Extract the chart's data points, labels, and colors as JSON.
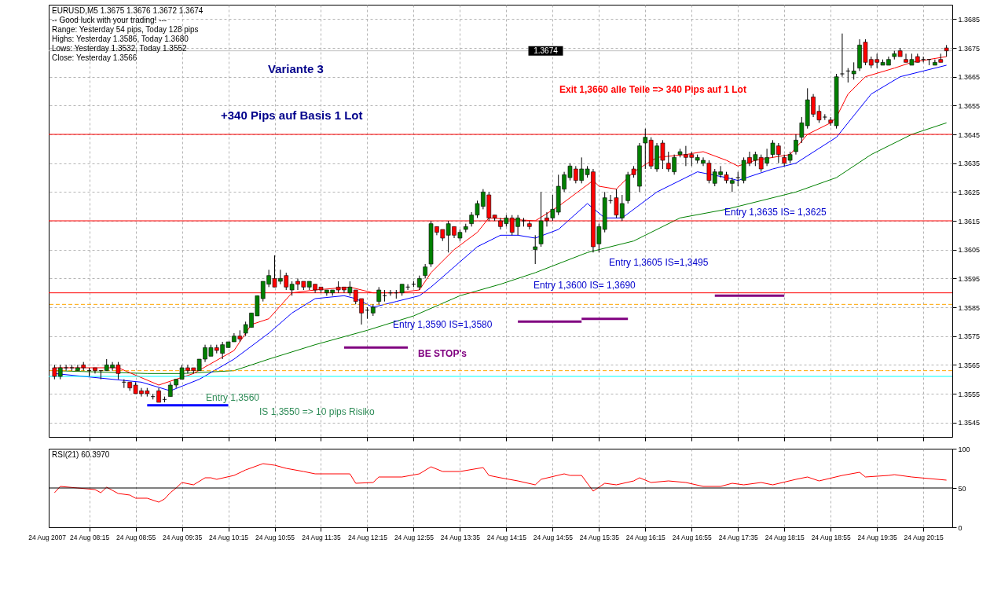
{
  "chart_data": [
    {
      "type": "candlestick",
      "title": "EURUSD,M5  1.3675 1.3676 1.3672 1.3674",
      "annotations": [
        "-- Good luck with your trading! ---",
        "Range: Yesterday 54 pips, Today 128 pips",
        "Highs: Yesterday 1.3586, Today 1.3680",
        "Lows:  Yesterday 1.3532, Today 1.3552",
        "Close: Yesterday 1.3566",
        "Variante 3",
        "+340 Pips auf Basis 1 Lot",
        "Exit 1,3660 alle Teile => 340 Pips auf 1 Lot",
        "BE STOP's",
        "Entry 1,3560",
        "IS 1,3550 => 10 pips Risiko",
        "Entry 1,3590 IS=1,3580",
        "Entry 1,3600 IS= 1,3690",
        "Entry 1,3605 IS=1,3495",
        "Entry 1,3635 IS= 1,3625"
      ],
      "x": [
        "2007-08-24T07:45",
        "2007-08-24T07:50",
        "2007-08-24T07:55",
        "2007-08-24T08:00",
        "2007-08-24T08:05",
        "2007-08-24T08:10",
        "2007-08-24T08:15",
        "2007-08-24T08:20",
        "2007-08-24T08:25",
        "2007-08-24T08:30",
        "2007-08-24T08:35",
        "2007-08-24T08:40",
        "2007-08-24T08:45",
        "2007-08-24T08:50",
        "2007-08-24T08:55",
        "2007-08-24T09:00",
        "2007-08-24T09:05",
        "2007-08-24T09:10",
        "2007-08-24T09:15",
        "2007-08-24T09:20",
        "2007-08-24T09:25",
        "2007-08-24T09:30",
        "2007-08-24T09:35",
        "2007-08-24T09:40",
        "2007-08-24T09:45",
        "2007-08-24T09:50",
        "2007-08-24T09:55",
        "2007-08-24T10:00",
        "2007-08-24T10:05",
        "2007-08-24T10:10",
        "2007-08-24T10:15",
        "2007-08-24T10:20",
        "2007-08-24T10:25",
        "2007-08-24T10:30",
        "2007-08-24T10:35",
        "2007-08-24T10:40",
        "2007-08-24T10:45",
        "2007-08-24T10:50",
        "2007-08-24T10:55",
        "2007-08-24T11:00",
        "2007-08-24T11:05",
        "2007-08-24T11:10",
        "2007-08-24T11:15",
        "2007-08-24T11:20",
        "2007-08-24T11:25",
        "2007-08-24T11:30",
        "2007-08-24T11:35",
        "2007-08-24T11:40",
        "2007-08-24T11:45",
        "2007-08-24T11:50",
        "2007-08-24T11:55",
        "2007-08-24T12:00",
        "2007-08-24T12:05",
        "2007-08-24T12:10",
        "2007-08-24T12:15",
        "2007-08-24T12:20",
        "2007-08-24T12:25",
        "2007-08-24T12:30",
        "2007-08-24T12:35",
        "2007-08-24T12:40",
        "2007-08-24T12:45",
        "2007-08-24T12:50",
        "2007-08-24T12:55",
        "2007-08-24T13:00",
        "2007-08-24T13:05",
        "2007-08-24T13:10",
        "2007-08-24T13:15",
        "2007-08-24T13:20",
        "2007-08-24T13:25",
        "2007-08-24T13:30",
        "2007-08-24T13:35",
        "2007-08-24T13:40",
        "2007-08-24T13:45",
        "2007-08-24T13:50",
        "2007-08-24T13:55",
        "2007-08-24T14:00",
        "2007-08-24T14:05",
        "2007-08-24T14:10",
        "2007-08-24T14:15",
        "2007-08-24T14:20",
        "2007-08-24T14:25",
        "2007-08-24T14:30",
        "2007-08-24T14:35",
        "2007-08-24T14:40",
        "2007-08-24T14:45",
        "2007-08-24T14:50",
        "2007-08-24T14:55",
        "2007-08-24T15:00",
        "2007-08-24T15:05",
        "2007-08-24T15:10",
        "2007-08-24T15:15",
        "2007-08-24T15:20",
        "2007-08-24T15:25",
        "2007-08-24T15:30",
        "2007-08-24T15:35",
        "2007-08-24T15:40",
        "2007-08-24T15:45",
        "2007-08-24T15:50",
        "2007-08-24T15:55",
        "2007-08-24T16:00",
        "2007-08-24T16:05",
        "2007-08-24T16:10",
        "2007-08-24T16:15",
        "2007-08-24T16:20",
        "2007-08-24T16:25",
        "2007-08-24T16:30",
        "2007-08-24T16:35",
        "2007-08-24T16:40",
        "2007-08-24T16:45",
        "2007-08-24T16:50",
        "2007-08-24T16:55",
        "2007-08-24T17:00",
        "2007-08-24T17:05",
        "2007-08-24T17:10",
        "2007-08-24T17:15",
        "2007-08-24T17:20",
        "2007-08-24T17:25",
        "2007-08-24T17:30",
        "2007-08-24T17:35",
        "2007-08-24T17:40",
        "2007-08-24T17:45",
        "2007-08-24T17:50",
        "2007-08-24T17:55",
        "2007-08-24T18:00",
        "2007-08-24T18:05",
        "2007-08-24T18:10",
        "2007-08-24T18:15",
        "2007-08-24T18:20",
        "2007-08-24T18:25",
        "2007-08-24T18:30",
        "2007-08-24T18:35",
        "2007-08-24T18:40",
        "2007-08-24T18:45",
        "2007-08-24T18:50",
        "2007-08-24T18:55",
        "2007-08-24T19:00",
        "2007-08-24T19:05",
        "2007-08-24T19:10",
        "2007-08-24T19:15",
        "2007-08-24T19:20",
        "2007-08-24T19:25",
        "2007-08-24T19:30",
        "2007-08-24T19:35",
        "2007-08-24T19:40",
        "2007-08-24T19:45",
        "2007-08-24T19:50",
        "2007-08-24T19:55",
        "2007-08-24T20:00",
        "2007-08-24T20:05",
        "2007-08-24T20:10",
        "2007-08-24T20:15",
        "2007-08-24T20:20",
        "2007-08-24T20:25",
        "2007-08-24T20:30",
        "2007-08-24T20:35"
      ],
      "ohlc": [
        [
          1.3564,
          1.3565,
          1.356,
          1.3561
        ],
        [
          1.3561,
          1.3565,
          1.356,
          1.3564
        ],
        [
          1.3564,
          1.3565,
          1.3563,
          1.3564
        ],
        [
          1.3564,
          1.3565,
          1.3563,
          1.3564
        ],
        [
          1.3563,
          1.3565,
          1.3563,
          1.3564
        ],
        [
          1.3565,
          1.3566,
          1.3563,
          1.3564
        ],
        [
          1.3563,
          1.3564,
          1.3561,
          1.3563
        ],
        [
          1.3564,
          1.3564,
          1.3562,
          1.3563
        ],
        [
          1.3563,
          1.3563,
          1.356,
          1.3563
        ],
        [
          1.3563,
          1.3567,
          1.3563,
          1.3565
        ],
        [
          1.3564,
          1.3566,
          1.3563,
          1.3565
        ],
        [
          1.3565,
          1.3566,
          1.356,
          1.3562
        ],
        [
          1.3559,
          1.356,
          1.3557,
          1.3559
        ],
        [
          1.3559,
          1.3559,
          1.3556,
          1.3557
        ],
        [
          1.3558,
          1.3559,
          1.3555,
          1.3555
        ],
        [
          1.3556,
          1.3557,
          1.3554,
          1.3555
        ],
        [
          1.3556,
          1.3557,
          1.3554,
          1.3555
        ],
        [
          1.3554,
          1.3555,
          1.3553,
          1.3554
        ],
        [
          1.3556,
          1.3557,
          1.3552,
          1.3552
        ],
        [
          1.3553,
          1.3554,
          1.3552,
          1.3553
        ],
        [
          1.3554,
          1.3559,
          1.3554,
          1.3558
        ],
        [
          1.3558,
          1.356,
          1.3557,
          1.356
        ],
        [
          1.356,
          1.3565,
          1.356,
          1.3564
        ],
        [
          1.3564,
          1.3565,
          1.3562,
          1.3563
        ],
        [
          1.3564,
          1.3564,
          1.3562,
          1.3563
        ],
        [
          1.3563,
          1.3567,
          1.3563,
          1.3567
        ],
        [
          1.3567,
          1.3572,
          1.3566,
          1.3571
        ],
        [
          1.3568,
          1.3572,
          1.3568,
          1.3571
        ],
        [
          1.3571,
          1.3572,
          1.3569,
          1.357
        ],
        [
          1.3569,
          1.3573,
          1.3567,
          1.3572
        ],
        [
          1.3571,
          1.3573,
          1.3571,
          1.3573
        ],
        [
          1.3573,
          1.3576,
          1.3573,
          1.3575
        ],
        [
          1.3575,
          1.3577,
          1.3573,
          1.3574
        ],
        [
          1.3576,
          1.358,
          1.3575,
          1.3579
        ],
        [
          1.3578,
          1.3583,
          1.3578,
          1.3583
        ],
        [
          1.3582,
          1.3589,
          1.3582,
          1.3589
        ],
        [
          1.3588,
          1.3594,
          1.3587,
          1.3594
        ],
        [
          1.3593,
          1.3598,
          1.3592,
          1.3596
        ],
        [
          1.3595,
          1.3603,
          1.3592,
          1.3592
        ],
        [
          1.3594,
          1.3598,
          1.3593,
          1.3595
        ],
        [
          1.3596,
          1.3597,
          1.3591,
          1.3592
        ],
        [
          1.3591,
          1.3594,
          1.3589,
          1.3593
        ],
        [
          1.3594,
          1.3595,
          1.3591,
          1.3593
        ],
        [
          1.3594,
          1.3594,
          1.3591,
          1.3592
        ],
        [
          1.3592,
          1.3594,
          1.3591,
          1.3594
        ],
        [
          1.3593,
          1.3593,
          1.359,
          1.3591
        ],
        [
          1.3592,
          1.3592,
          1.359,
          1.3591
        ],
        [
          1.359,
          1.3591,
          1.3589,
          1.3591
        ],
        [
          1.359,
          1.3591,
          1.3589,
          1.3591
        ],
        [
          1.3592,
          1.3594,
          1.359,
          1.3591
        ],
        [
          1.3592,
          1.3592,
          1.359,
          1.3591
        ],
        [
          1.359,
          1.3594,
          1.3589,
          1.3592
        ],
        [
          1.3591,
          1.3591,
          1.3586,
          1.3587
        ],
        [
          1.3588,
          1.3588,
          1.3579,
          1.3583
        ],
        [
          1.3584,
          1.3585,
          1.3581,
          1.3584
        ],
        [
          1.3583,
          1.3586,
          1.3582,
          1.3585
        ],
        [
          1.3587,
          1.3592,
          1.3586,
          1.3591
        ],
        [
          1.3589,
          1.3591,
          1.3587,
          1.3589
        ],
        [
          1.359,
          1.3591,
          1.3589,
          1.359
        ],
        [
          1.359,
          1.3591,
          1.3588,
          1.359
        ],
        [
          1.359,
          1.3593,
          1.3589,
          1.3593
        ],
        [
          1.3592,
          1.3593,
          1.3591,
          1.3592
        ],
        [
          1.3593,
          1.3594,
          1.3592,
          1.3593
        ],
        [
          1.3592,
          1.3596,
          1.3591,
          1.3595
        ],
        [
          1.3596,
          1.36,
          1.3595,
          1.3599
        ],
        [
          1.36,
          1.3615,
          1.3599,
          1.3614
        ],
        [
          1.3613,
          1.3613,
          1.361,
          1.3611
        ],
        [
          1.3612,
          1.3612,
          1.3608,
          1.3609
        ],
        [
          1.361,
          1.3615,
          1.3604,
          1.3614
        ],
        [
          1.3613,
          1.3613,
          1.3609,
          1.361
        ],
        [
          1.3609,
          1.3612,
          1.3608,
          1.3611
        ],
        [
          1.3612,
          1.3614,
          1.3611,
          1.3613
        ],
        [
          1.3614,
          1.3618,
          1.3613,
          1.3617
        ],
        [
          1.3617,
          1.3622,
          1.3616,
          1.3621
        ],
        [
          1.362,
          1.3626,
          1.3619,
          1.3625
        ],
        [
          1.3624,
          1.3625,
          1.3615,
          1.3616
        ],
        [
          1.3617,
          1.3617,
          1.3615,
          1.3616
        ],
        [
          1.3615,
          1.3616,
          1.3612,
          1.3613
        ],
        [
          1.3614,
          1.3617,
          1.3613,
          1.3616
        ],
        [
          1.3616,
          1.3617,
          1.361,
          1.3611
        ],
        [
          1.3613,
          1.3617,
          1.361,
          1.3616
        ],
        [
          1.3615,
          1.3616,
          1.3613,
          1.3615
        ],
        [
          1.3614,
          1.3615,
          1.3612,
          1.3613
        ],
        [
          1.3605,
          1.361,
          1.36,
          1.3606
        ],
        [
          1.3607,
          1.3625,
          1.3606,
          1.3615
        ],
        [
          1.3616,
          1.3618,
          1.3613,
          1.3615
        ],
        [
          1.3616,
          1.3624,
          1.3615,
          1.3619
        ],
        [
          1.3618,
          1.3631,
          1.3617,
          1.3627
        ],
        [
          1.3626,
          1.3632,
          1.3625,
          1.3631
        ],
        [
          1.363,
          1.3635,
          1.3629,
          1.3634
        ],
        [
          1.3633,
          1.3634,
          1.3628,
          1.3629
        ],
        [
          1.3629,
          1.3637,
          1.3628,
          1.3633
        ],
        [
          1.3631,
          1.3634,
          1.363,
          1.3633
        ],
        [
          1.3632,
          1.3633,
          1.3604,
          1.3606
        ],
        [
          1.3607,
          1.3614,
          1.3604,
          1.3613
        ],
        [
          1.3612,
          1.3625,
          1.3611,
          1.3623
        ],
        [
          1.3622,
          1.3624,
          1.3621,
          1.3622
        ],
        [
          1.3623,
          1.3626,
          1.3616,
          1.3617
        ],
        [
          1.3616,
          1.3624,
          1.3615,
          1.3621
        ],
        [
          1.3622,
          1.3632,
          1.3621,
          1.3631
        ],
        [
          1.3633,
          1.3634,
          1.363,
          1.3631
        ],
        [
          1.3627,
          1.3642,
          1.3625,
          1.3641
        ],
        [
          1.3642,
          1.3647,
          1.3633,
          1.3644
        ],
        [
          1.3643,
          1.3644,
          1.3633,
          1.3634
        ],
        [
          1.3633,
          1.3642,
          1.3632,
          1.3641
        ],
        [
          1.3642,
          1.3643,
          1.3633,
          1.3636
        ],
        [
          1.3635,
          1.3639,
          1.3632,
          1.3633
        ],
        [
          1.3632,
          1.3638,
          1.3631,
          1.3637
        ],
        [
          1.3638,
          1.364,
          1.3637,
          1.3639
        ],
        [
          1.3638,
          1.3641,
          1.3634,
          1.3637
        ],
        [
          1.3638,
          1.3639,
          1.3634,
          1.3637
        ],
        [
          1.3636,
          1.3638,
          1.3635,
          1.3637
        ],
        [
          1.3635,
          1.3637,
          1.3634,
          1.3636
        ],
        [
          1.3635,
          1.3636,
          1.3628,
          1.3629
        ],
        [
          1.3628,
          1.3633,
          1.3627,
          1.3632
        ],
        [
          1.3631,
          1.3634,
          1.363,
          1.3632
        ],
        [
          1.3631,
          1.3632,
          1.3628,
          1.3629
        ],
        [
          1.3628,
          1.363,
          1.3625,
          1.3629
        ],
        [
          1.363,
          1.3632,
          1.3627,
          1.363
        ],
        [
          1.3629,
          1.3637,
          1.3628,
          1.3636
        ],
        [
          1.3637,
          1.3639,
          1.3634,
          1.3635
        ],
        [
          1.3636,
          1.3639,
          1.3634,
          1.3638
        ],
        [
          1.3637,
          1.3638,
          1.3632,
          1.3633
        ],
        [
          1.3635,
          1.364,
          1.3634,
          1.3637
        ],
        [
          1.3638,
          1.3643,
          1.3637,
          1.3642
        ],
        [
          1.3641,
          1.3642,
          1.3635,
          1.3638
        ],
        [
          1.3637,
          1.3638,
          1.3634,
          1.3635
        ],
        [
          1.3636,
          1.3639,
          1.3635,
          1.3638
        ],
        [
          1.3639,
          1.3645,
          1.3638,
          1.3643
        ],
        [
          1.3644,
          1.3651,
          1.3642,
          1.3649
        ],
        [
          1.3648,
          1.3661,
          1.3647,
          1.3657
        ],
        [
          1.3658,
          1.3659,
          1.3651,
          1.3652
        ],
        [
          1.3653,
          1.3655,
          1.3649,
          1.365
        ],
        [
          1.3651,
          1.3652,
          1.365,
          1.3651
        ],
        [
          1.365,
          1.3651,
          1.3648,
          1.3649
        ],
        [
          1.3648,
          1.3666,
          1.3647,
          1.3665
        ],
        [
          1.3666,
          1.368,
          1.3665,
          1.3666
        ],
        [
          1.3667,
          1.3668,
          1.3663,
          1.3667
        ],
        [
          1.3666,
          1.367,
          1.3664,
          1.3667
        ],
        [
          1.3668,
          1.3678,
          1.3667,
          1.3676
        ],
        [
          1.3677,
          1.3678,
          1.3669,
          1.367
        ],
        [
          1.3671,
          1.3672,
          1.3668,
          1.3669
        ],
        [
          1.3671,
          1.3673,
          1.3668,
          1.367
        ],
        [
          1.3669,
          1.3671,
          1.3669,
          1.367
        ],
        [
          1.3669,
          1.3672,
          1.3669,
          1.3671
        ],
        [
          1.3672,
          1.3674,
          1.3671,
          1.3673
        ],
        [
          1.3674,
          1.3675,
          1.3672,
          1.3672
        ],
        [
          1.3671,
          1.3673,
          1.367,
          1.367
        ],
        [
          1.3669,
          1.3673,
          1.3669,
          1.3671
        ],
        [
          1.3672,
          1.3673,
          1.367,
          1.367
        ],
        [
          1.3671,
          1.3672,
          1.367,
          1.3671
        ],
        [
          1.3671,
          1.3671,
          1.3669,
          1.3671
        ],
        [
          1.3669,
          1.3671,
          1.3669,
          1.367
        ],
        [
          1.3671,
          1.3673,
          1.367,
          1.367
        ],
        [
          1.3675,
          1.3676,
          1.3672,
          1.3674
        ]
      ],
      "colors": [
        "#ff0000",
        "#008000",
        "#000000",
        "#000000",
        "#008000",
        "#ff0000",
        "#000000",
        "#ff0000",
        "#000000",
        "#008000",
        "#008000",
        "#ff0000",
        "#000000",
        "#ff0000",
        "#ff0000",
        "#ff0000",
        "#ff0000",
        "#000000",
        "#ff0000",
        "#000000",
        "#008000",
        "#008000",
        "#008000",
        "#ff0000",
        "#ff0000",
        "#008000",
        "#008000",
        "#008000",
        "#ff0000",
        "#008000",
        "#008000",
        "#008000",
        "#ff0000",
        "#008000",
        "#008000",
        "#008000",
        "#008000",
        "#008000",
        "#ff0000",
        "#008000",
        "#ff0000",
        "#008000",
        "#ff0000",
        "#ff0000",
        "#008000",
        "#ff0000",
        "#ff0000",
        "#008000",
        "#008000",
        "#ff0000",
        "#ff0000",
        "#008000",
        "#ff0000",
        "#ff0000",
        "#000000",
        "#008000",
        "#008000",
        "#000000",
        "#000000",
        "#000000",
        "#008000",
        "#000000",
        "#000000",
        "#008000",
        "#008000",
        "#008000",
        "#ff0000",
        "#ff0000",
        "#008000",
        "#ff0000",
        "#008000",
        "#008000",
        "#008000",
        "#008000",
        "#008000",
        "#ff0000",
        "#ff0000",
        "#ff0000",
        "#008000",
        "#ff0000",
        "#008000",
        "#000000",
        "#ff0000",
        "#008000",
        "#008000",
        "#ff0000",
        "#008000",
        "#008000",
        "#008000",
        "#008000",
        "#ff0000",
        "#008000",
        "#008000",
        "#ff0000",
        "#008000",
        "#008000",
        "#000000",
        "#ff0000",
        "#008000",
        "#008000",
        "#ff0000",
        "#008000",
        "#008000",
        "#ff0000",
        "#008000",
        "#ff0000",
        "#ff0000",
        "#008000",
        "#008000",
        "#ff0000",
        "#ff0000",
        "#008000",
        "#008000",
        "#ff0000",
        "#008000",
        "#008000",
        "#ff0000",
        "#008000",
        "#000000",
        "#008000",
        "#ff0000",
        "#008000",
        "#ff0000",
        "#008000",
        "#008000",
        "#ff0000",
        "#ff0000",
        "#008000",
        "#008000",
        "#008000",
        "#008000",
        "#ff0000",
        "#ff0000",
        "#000000",
        "#ff0000",
        "#008000",
        "#000000",
        "#000000",
        "#008000",
        "#008000",
        "#ff0000",
        "#ff0000",
        "#ff0000",
        "#008000",
        "#008000",
        "#008000",
        "#ff0000",
        "#ff0000",
        "#008000",
        "#ff0000",
        "#000000",
        "#000000",
        "#008000",
        "#ff0000",
        "#ff0000"
      ],
      "series": [
        {
          "type": "line",
          "color": "#008000",
          "x": [
            "2007-08-24T07:45",
            "2007-08-24T09:05",
            "2007-08-24T09:35",
            "2007-08-24T10:20",
            "2007-08-24T10:50",
            "2007-08-24T11:30",
            "2007-08-24T12:15",
            "2007-08-24T12:55",
            "2007-08-24T13:35",
            "2007-08-24T14:10",
            "2007-08-24T14:40",
            "2007-08-24T15:25",
            "2007-08-24T16:05",
            "2007-08-24T16:45",
            "2007-08-24T17:25",
            "2007-08-24T18:25",
            "2007-08-24T19:00",
            "2007-08-24T19:30",
            "2007-08-24T20:05",
            "2007-08-24T20:35"
          ],
          "values": [
            1.3563,
            1.3562,
            1.3562,
            1.3563,
            1.3567,
            1.3572,
            1.3577,
            1.3582,
            1.3589,
            1.3593,
            1.3597,
            1.3604,
            1.3608,
            1.3616,
            1.3619,
            1.3625,
            1.363,
            1.3638,
            1.3645,
            1.3649
          ]
        },
        {
          "type": "line",
          "color": "#0000ff",
          "x": [
            "2007-08-24T07:45",
            "2007-08-24T09:00",
            "2007-08-24T09:25",
            "2007-08-24T09:50",
            "2007-08-24T10:20",
            "2007-08-24T10:50",
            "2007-08-24T11:10",
            "2007-08-24T11:30",
            "2007-08-24T11:55",
            "2007-08-24T12:05",
            "2007-08-24T12:20",
            "2007-08-24T12:40",
            "2007-08-24T13:00",
            "2007-08-24T13:10",
            "2007-08-24T13:30",
            "2007-08-24T13:50",
            "2007-08-24T14:10",
            "2007-08-24T14:25",
            "2007-08-24T14:40",
            "2007-08-24T15:00",
            "2007-08-24T15:25",
            "2007-08-24T15:40",
            "2007-08-24T15:55",
            "2007-08-24T16:25",
            "2007-08-24T17:00",
            "2007-08-24T17:25",
            "2007-08-24T17:35",
            "2007-08-24T18:05",
            "2007-08-24T18:25",
            "2007-08-24T19:00",
            "2007-08-24T19:30",
            "2007-08-24T19:55",
            "2007-08-24T20:35"
          ],
          "values": [
            1.3562,
            1.3559,
            1.3556,
            1.356,
            1.3567,
            1.3576,
            1.3583,
            1.3588,
            1.3589,
            1.3588,
            1.3585,
            1.3587,
            1.3589,
            1.3592,
            1.3599,
            1.3606,
            1.361,
            1.361,
            1.3609,
            1.3612,
            1.3621,
            1.3616,
            1.3616,
            1.3625,
            1.3632,
            1.363,
            1.3629,
            1.3633,
            1.3635,
            1.3644,
            1.3659,
            1.3665,
            1.3669
          ]
        },
        {
          "type": "line",
          "color": "#ff0000",
          "x": [
            "2007-08-24T07:45",
            "2007-08-24T08:40",
            "2007-08-24T09:15",
            "2007-08-24T09:45",
            "2007-08-24T10:20",
            "2007-08-24T10:35",
            "2007-08-24T10:50",
            "2007-08-24T11:10",
            "2007-08-24T11:30",
            "2007-08-24T12:00",
            "2007-08-24T12:20",
            "2007-08-24T12:40",
            "2007-08-24T13:00",
            "2007-08-24T13:10",
            "2007-08-24T13:30",
            "2007-08-24T13:50",
            "2007-08-24T14:00",
            "2007-08-24T14:40",
            "2007-08-24T15:00",
            "2007-08-24T15:30",
            "2007-08-24T15:35",
            "2007-08-24T15:50",
            "2007-08-24T16:05",
            "2007-08-24T16:25",
            "2007-08-24T16:50",
            "2007-08-24T17:05",
            "2007-08-24T17:25",
            "2007-08-24T17:35",
            "2007-08-24T17:50",
            "2007-08-24T18:20",
            "2007-08-24T18:35",
            "2007-08-24T18:55",
            "2007-08-24T19:00",
            "2007-08-24T19:10",
            "2007-08-24T19:25",
            "2007-08-24T19:50",
            "2007-08-24T20:05",
            "2007-08-24T20:35"
          ],
          "values": [
            1.3564,
            1.3564,
            1.3558,
            1.3562,
            1.357,
            1.3579,
            1.3581,
            1.359,
            1.3591,
            1.3592,
            1.359,
            1.359,
            1.3591,
            1.3597,
            1.3605,
            1.3611,
            1.3616,
            1.3615,
            1.362,
            1.3629,
            1.3627,
            1.3626,
            1.3632,
            1.3637,
            1.3638,
            1.3639,
            1.3636,
            1.3634,
            1.3636,
            1.3638,
            1.3645,
            1.3649,
            1.3651,
            1.3659,
            1.3665,
            1.3668,
            1.367,
            1.3672
          ]
        },
        {
          "type": "line",
          "color": "#0000ff",
          "x": [
            "2007-08-24T09:05",
            "2007-08-24T10:15"
          ],
          "values": [
            1.3551,
            1.3551
          ]
        },
        {
          "type": "line",
          "color": "#800080",
          "x": [
            "2007-08-24T11:55",
            "2007-08-24T12:50"
          ],
          "values": [
            1.3571,
            1.3571
          ]
        },
        {
          "type": "line",
          "color": "#800080",
          "x": [
            "2007-08-24T14:25",
            "2007-08-24T15:20"
          ],
          "values": [
            1.358,
            1.358
          ]
        },
        {
          "type": "line",
          "color": "#800080",
          "x": [
            "2007-08-24T15:20",
            "2007-08-24T16:00"
          ],
          "values": [
            1.3581,
            1.3581
          ]
        },
        {
          "type": "line",
          "color": "#800080",
          "x": [
            "2007-08-24T17:15",
            "2007-08-24T18:15"
          ],
          "values": [
            1.3589,
            1.3589
          ]
        }
      ],
      "ref_lines": [
        {
          "axis": "y",
          "value": 1.3645,
          "color": "#ff0000"
        },
        {
          "axis": "y",
          "value": 1.3615,
          "color": "#ff0000"
        },
        {
          "axis": "y",
          "value": 1.359,
          "color": "#ff0000"
        },
        {
          "axis": "y",
          "value": 1.3561,
          "color": "#00ffff"
        },
        {
          "axis": "y",
          "value": 1.3586,
          "color": "#ffa500",
          "line_style": "dashed"
        },
        {
          "axis": "y",
          "value": 1.3563,
          "color": "#ffa500",
          "line_style": "dashed"
        },
        {
          "axis": "y",
          "value": 1.3674,
          "color": "#c0c0c0",
          "label": "1.3674"
        }
      ],
      "xlim": [
        "2007-08-24T07:40",
        "2007-08-24T20:40"
      ],
      "xticks": [
        {
          "value": "2007-08-24T08:15",
          "label": null
        },
        {
          "value": "2007-08-24T08:55",
          "label": null
        },
        {
          "value": "2007-08-24T09:35",
          "label": null
        },
        {
          "value": "2007-08-24T10:15",
          "label": null
        },
        {
          "value": "2007-08-24T10:55",
          "label": null
        },
        {
          "value": "2007-08-24T11:35",
          "label": null
        },
        {
          "value": "2007-08-24T12:15",
          "label": null
        },
        {
          "value": "2007-08-24T12:55",
          "label": null
        },
        {
          "value": "2007-08-24T13:35",
          "label": null
        },
        {
          "value": "2007-08-24T14:15",
          "label": null
        },
        {
          "value": "2007-08-24T14:55",
          "label": null
        },
        {
          "value": "2007-08-24T15:35",
          "label": null
        },
        {
          "value": "2007-08-24T16:15",
          "label": null
        },
        {
          "value": "2007-08-24T16:55",
          "label": null
        },
        {
          "value": "2007-08-24T17:35",
          "label": null
        },
        {
          "value": "2007-08-24T18:15",
          "label": null
        },
        {
          "value": "2007-08-24T18:55",
          "label": null
        },
        {
          "value": "2007-08-24T19:35",
          "label": null
        },
        {
          "value": "2007-08-24T20:15",
          "label": null
        }
      ],
      "ylim": [
        1.354,
        1.369
      ],
      "yticks": [
        1.3545,
        1.3555,
        1.3565,
        1.3575,
        1.3585,
        1.3595,
        1.3605,
        1.3615,
        1.3625,
        1.3635,
        1.3645,
        1.3655,
        1.3665,
        1.3675,
        1.3685
      ],
      "grid": true,
      "tick_labels": "y"
    },
    {
      "type": "line",
      "title": "RSI(21) 60.3970",
      "series": [
        {
          "color": "#ff0000",
          "x": [
            "2007-08-24T07:45",
            "2007-08-24T07:50",
            "2007-08-24T08:05",
            "2007-08-24T08:20",
            "2007-08-24T08:25",
            "2007-08-24T08:30",
            "2007-08-24T08:40",
            "2007-08-24T08:50",
            "2007-08-24T08:55",
            "2007-08-24T09:05",
            "2007-08-24T09:15",
            "2007-08-24T09:20",
            "2007-08-24T09:25",
            "2007-08-24T09:30",
            "2007-08-24T09:35",
            "2007-08-24T09:45",
            "2007-08-24T09:55",
            "2007-08-24T10:00",
            "2007-08-24T10:05",
            "2007-08-24T10:20",
            "2007-08-24T10:30",
            "2007-08-24T10:45",
            "2007-08-24T10:55",
            "2007-08-24T11:05",
            "2007-08-24T11:20",
            "2007-08-24T11:30",
            "2007-08-24T12:00",
            "2007-08-24T12:05",
            "2007-08-24T12:20",
            "2007-08-24T12:25",
            "2007-08-24T12:45",
            "2007-08-24T13:00",
            "2007-08-24T13:10",
            "2007-08-24T13:20",
            "2007-08-24T13:35",
            "2007-08-24T13:55",
            "2007-08-24T14:00",
            "2007-08-24T14:10",
            "2007-08-24T14:25",
            "2007-08-24T14:40",
            "2007-08-24T14:45",
            "2007-08-24T15:05",
            "2007-08-24T15:10",
            "2007-08-24T15:20",
            "2007-08-24T15:30",
            "2007-08-24T15:40",
            "2007-08-24T15:50",
            "2007-08-24T16:05",
            "2007-08-24T16:10",
            "2007-08-24T16:20",
            "2007-08-24T16:35",
            "2007-08-24T16:50",
            "2007-08-24T17:05",
            "2007-08-24T17:20",
            "2007-08-24T17:30",
            "2007-08-24T17:40",
            "2007-08-24T17:55",
            "2007-08-24T18:05",
            "2007-08-24T18:25",
            "2007-08-24T18:35",
            "2007-08-24T18:45",
            "2007-08-24T19:05",
            "2007-08-24T19:20",
            "2007-08-24T19:25",
            "2007-08-24T19:45",
            "2007-08-24T19:50",
            "2007-08-24T20:05",
            "2007-08-24T20:35"
          ],
          "values": [
            44,
            52,
            50,
            48,
            44,
            51,
            43,
            41,
            37,
            37,
            32,
            36,
            44,
            50,
            57,
            54,
            63,
            63,
            61,
            66,
            73,
            81,
            79,
            75,
            71,
            68,
            68,
            56,
            57,
            64,
            64,
            68,
            77,
            71,
            71,
            76,
            66,
            63,
            59,
            54,
            61,
            68,
            66,
            66,
            46,
            56,
            54,
            59,
            63,
            57,
            59,
            57,
            52,
            52,
            56,
            54,
            57,
            54,
            61,
            64,
            59,
            66,
            70,
            64,
            66,
            67,
            64,
            60
          ]
        }
      ],
      "ref_lines": [
        {
          "axis": "y",
          "value": 50,
          "color": "#000000"
        }
      ],
      "xlim": [
        "2007-08-24T07:40",
        "2007-08-24T20:40"
      ],
      "annotations": [
        "24 Aug 2007"
      ],
      "xticks": [
        {
          "value": "2007-08-24T08:15",
          "label": "24 Aug 08:15"
        },
        {
          "value": "2007-08-24T08:55",
          "label": "24 Aug 08:55"
        },
        {
          "value": "2007-08-24T09:35",
          "label": "24 Aug 09:35"
        },
        {
          "value": "2007-08-24T10:15",
          "label": "24 Aug 10:15"
        },
        {
          "value": "2007-08-24T10:55",
          "label": "24 Aug 10:55"
        },
        {
          "value": "2007-08-24T11:35",
          "label": "24 Aug 11:35"
        },
        {
          "value": "2007-08-24T12:15",
          "label": "24 Aug 12:15"
        },
        {
          "value": "2007-08-24T12:55",
          "label": "24 Aug 12:55"
        },
        {
          "value": "2007-08-24T13:35",
          "label": "24 Aug 13:35"
        },
        {
          "value": "2007-08-24T14:15",
          "label": "24 Aug 14:15"
        },
        {
          "value": "2007-08-24T14:55",
          "label": "24 Aug 14:55"
        },
        {
          "value": "2007-08-24T15:35",
          "label": "24 Aug 15:35"
        },
        {
          "value": "2007-08-24T16:15",
          "label": "24 Aug 16:15"
        },
        {
          "value": "2007-08-24T16:55",
          "label": "24 Aug 16:55"
        },
        {
          "value": "2007-08-24T17:35",
          "label": "24 Aug 17:35"
        },
        {
          "value": "2007-08-24T18:15",
          "label": "24 Aug 18:15"
        },
        {
          "value": "2007-08-24T18:55",
          "label": "24 Aug 18:55"
        },
        {
          "value": "2007-08-24T19:35",
          "label": "24 Aug 19:35"
        },
        {
          "value": "2007-08-24T20:15",
          "label": "24 Aug 20:15"
        }
      ],
      "ylim": [
        0,
        100
      ],
      "yticks": [
        0,
        50,
        100
      ],
      "grid": "x"
    }
  ]
}
